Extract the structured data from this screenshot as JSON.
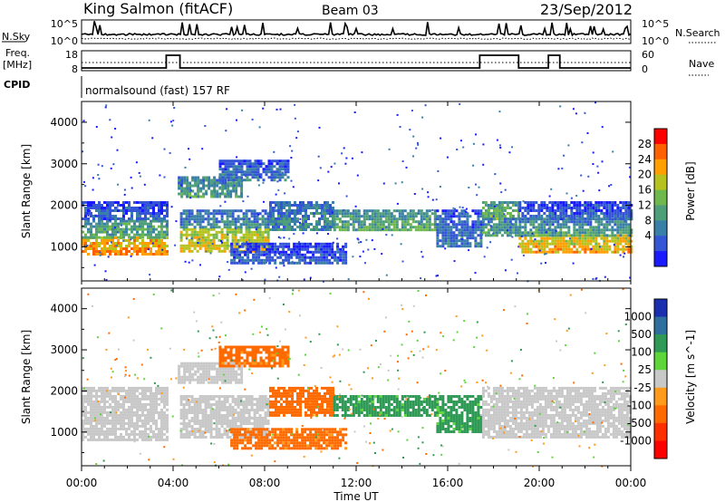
{
  "header": {
    "station": "King Salmon (fitACF)",
    "beam": "Beam 03",
    "date": "23/Sep/2012"
  },
  "nsky_panel": {
    "label": "N.Sky",
    "tick_top": "10^5",
    "tick_bottom": "10^0",
    "right_label": "N.Search",
    "right_tick_top": "10^5",
    "right_tick_bottom": "10^0"
  },
  "freq_panel": {
    "label_line1": "Freq.",
    "label_line2": "[MHz]",
    "tick_top": "18",
    "tick_bottom": "8",
    "right_label": "Nave",
    "right_tick_top": "60",
    "right_tick_bottom": "0",
    "freq_high_intervals_hours": [
      [
        3.7,
        4.3
      ],
      [
        17.4,
        19.1
      ],
      [
        20.4,
        20.9
      ]
    ]
  },
  "cpid": {
    "label": "CPID",
    "mode": "normalsound (fast) 157 RF"
  },
  "time_axis": {
    "title": "Time UT",
    "ticks": [
      "00:00",
      "04:00",
      "08:00",
      "12:00",
      "16:00",
      "20:00",
      "00:00"
    ],
    "range_hours": [
      0,
      24
    ]
  },
  "chart_data": [
    {
      "type": "heatmap",
      "name": "power",
      "ylabel": "Slant Range [km]",
      "yticks": [
        1000,
        2000,
        3000,
        4000
      ],
      "ylim": [
        180,
        4500
      ],
      "colorbar": {
        "label": "Power [dB]",
        "ticks": [
          "28",
          "24",
          "20",
          "16",
          "12",
          "8",
          "4"
        ],
        "levels": [
          0,
          4,
          8,
          12,
          16,
          20,
          24,
          28,
          32
        ],
        "colors": [
          "#1a1aff",
          "#3355d6",
          "#3a7fa8",
          "#4f9e7a",
          "#6fb84e",
          "#b6c21e",
          "#ff9f00",
          "#ff6000",
          "#ff0000"
        ]
      },
      "bands": [
        {
          "t0": 0.0,
          "t1": 3.7,
          "r0": 800,
          "r1": 1250,
          "level": 26
        },
        {
          "t0": 0.0,
          "t1": 3.7,
          "r0": 1250,
          "r1": 1650,
          "level": 14
        },
        {
          "t0": 0.0,
          "t1": 3.7,
          "r0": 1650,
          "r1": 2100,
          "level": 6
        },
        {
          "t0": 4.3,
          "t1": 8.2,
          "r0": 900,
          "r1": 1450,
          "level": 22
        },
        {
          "t0": 4.3,
          "t1": 8.2,
          "r0": 1450,
          "r1": 1900,
          "level": 10
        },
        {
          "t0": 4.2,
          "t1": 7.0,
          "r0": 2200,
          "r1": 2700,
          "level": 12
        },
        {
          "t0": 6.0,
          "t1": 9.0,
          "r0": 2600,
          "r1": 3100,
          "level": 8
        },
        {
          "t0": 6.5,
          "t1": 11.5,
          "r0": 600,
          "r1": 1100,
          "level": 6
        },
        {
          "t0": 8.2,
          "t1": 11.0,
          "r0": 1400,
          "r1": 2100,
          "level": 10
        },
        {
          "t0": 11.0,
          "t1": 15.5,
          "r0": 1400,
          "r1": 1900,
          "level": 14
        },
        {
          "t0": 15.5,
          "t1": 17.5,
          "r0": 1000,
          "r1": 1900,
          "level": 8
        },
        {
          "t0": 17.5,
          "t1": 19.1,
          "r0": 1700,
          "r1": 2100,
          "level": 16
        },
        {
          "t0": 17.5,
          "t1": 19.1,
          "r0": 1300,
          "r1": 1700,
          "level": 12
        },
        {
          "t0": 19.1,
          "t1": 24.0,
          "r0": 850,
          "r1": 1300,
          "level": 24
        },
        {
          "t0": 19.1,
          "t1": 24.0,
          "r0": 1300,
          "r1": 1700,
          "level": 12
        },
        {
          "t0": 19.1,
          "t1": 24.0,
          "r0": 1700,
          "r1": 2100,
          "level": 6
        }
      ]
    },
    {
      "type": "heatmap",
      "name": "velocity",
      "ylabel": "Slant Range [km]",
      "yticks": [
        1000,
        2000,
        3000,
        4000
      ],
      "ylim": [
        180,
        4500
      ],
      "colorbar": {
        "label": "Velocity [m s^-1]",
        "ticks": [
          "1000",
          "500",
          "100",
          "25",
          "-25",
          "-100",
          "-500",
          "-1000"
        ],
        "colors": [
          "#1a2fb0",
          "#2f6fa0",
          "#2f9a55",
          "#5ed63a",
          "#c8c8c8",
          "#ff9a1a",
          "#ff6a00",
          "#ff3000",
          "#ff0000"
        ]
      },
      "bands": [
        {
          "t0": 0.0,
          "t1": 3.7,
          "r0": 800,
          "r1": 2100,
          "level": 0
        },
        {
          "t0": 4.3,
          "t1": 8.2,
          "r0": 900,
          "r1": 1900,
          "level": 0
        },
        {
          "t0": 4.2,
          "t1": 7.0,
          "r0": 2200,
          "r1": 2700,
          "level": 0
        },
        {
          "t0": 6.0,
          "t1": 9.0,
          "r0": 2600,
          "r1": 3100,
          "level": -150
        },
        {
          "t0": 6.5,
          "t1": 11.5,
          "r0": 600,
          "r1": 1100,
          "level": -150
        },
        {
          "t0": 8.2,
          "t1": 11.0,
          "r0": 1400,
          "r1": 2100,
          "level": -200
        },
        {
          "t0": 11.0,
          "t1": 15.5,
          "r0": 1400,
          "r1": 1900,
          "level": 150
        },
        {
          "t0": 15.5,
          "t1": 17.5,
          "r0": 1000,
          "r1": 1900,
          "level": 150
        },
        {
          "t0": 17.5,
          "t1": 24.0,
          "r0": 850,
          "r1": 2100,
          "level": 0
        }
      ]
    }
  ]
}
